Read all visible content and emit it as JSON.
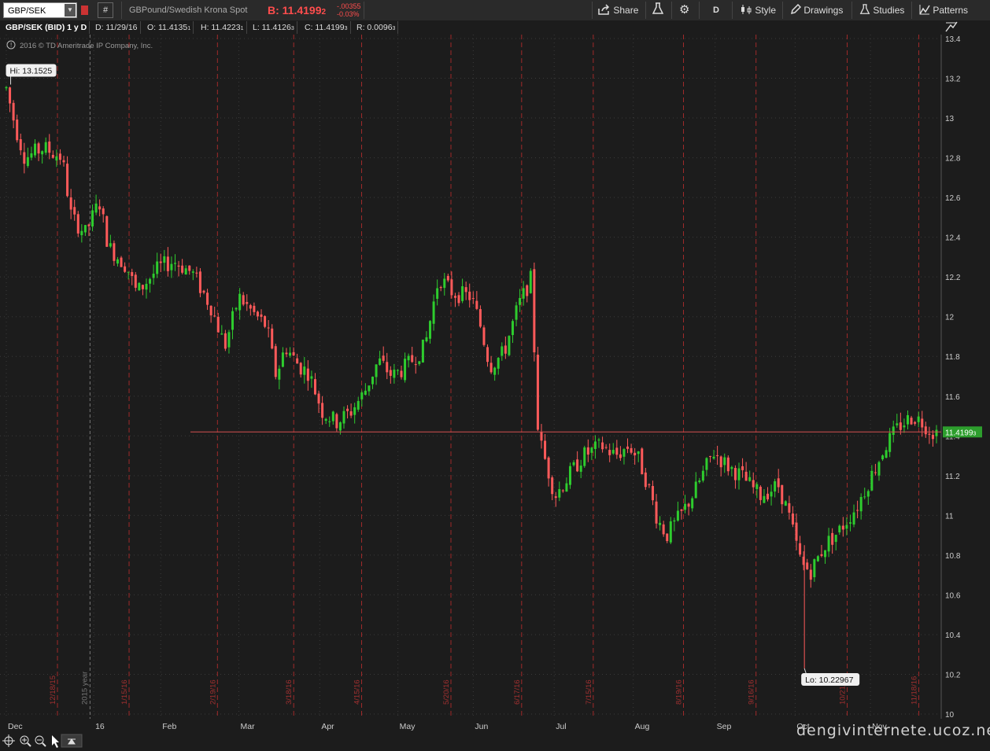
{
  "toolbar": {
    "symbol": "GBP/SEK",
    "description": "GBPound/Swedish Krona Spot",
    "bid_label": "B: 11.4199",
    "bid_last_digit": "2",
    "change": "-.00355",
    "change_pct": "-0.03%",
    "share": "Share",
    "aggregation": "D",
    "style": "Style",
    "drawings": "Drawings",
    "studies": "Studies",
    "patterns": "Patterns",
    "hash": "#"
  },
  "infobar": {
    "title": "GBP/SEK (BID) 1 y D",
    "date": "D: 11/29/16",
    "open": "O: 11.4135",
    "open_sub": "1",
    "high": "H: 11.4223",
    "high_sub": "1",
    "low": "L: 11.4126",
    "low_sub": "3",
    "close": "C: 11.4199",
    "close_sub": "3",
    "range": "R: 0.0096",
    "range_sub": "3"
  },
  "copyright": "2016 © TD Ameritrade IP Company, Inc.",
  "hi_label": "Hi: 13.1525",
  "lo_label": "Lo: 10.22967",
  "last_price_tag": "11.4199",
  "last_price_sub": "3",
  "watermark": "dengivinternete.ucoz.net",
  "colors": {
    "up": "#2ecc2e",
    "down": "#ff5a5a",
    "grid": "#3a3a3a",
    "vline": "#a02a2a",
    "price_line": "#d45050"
  },
  "chart_data": {
    "type": "candlestick",
    "ylim": [
      10.0,
      13.4
    ],
    "y_ticks": [
      10,
      10.2,
      10.4,
      10.6,
      10.8,
      11,
      11.2,
      11.4,
      11.6,
      11.8,
      12,
      12.2,
      12.4,
      12.6,
      12.8,
      13,
      13.2,
      13.4
    ],
    "y_tick_labels": [
      "10",
      "10.2",
      "10.4",
      "10.6",
      "10.8",
      "11",
      "11.2",
      "11.4",
      "11.6",
      "11.8",
      "12",
      "12.2",
      "12.4",
      "12.6",
      "12.8",
      "13",
      "13.2",
      "13.4"
    ],
    "x_month_labels": [
      "Dec",
      "16",
      "Feb",
      "Mar",
      "Apr",
      "May",
      "Jun",
      "Jul",
      "Aug",
      "Sep",
      "Oct",
      "Nov"
    ],
    "x_month_pos": [
      0.0,
      0.094,
      0.166,
      0.25,
      0.337,
      0.421,
      0.502,
      0.589,
      0.674,
      0.762,
      0.848,
      0.929
    ],
    "expiration_labels": [
      "12/18/15",
      "1/15/16",
      "2/19/16",
      "3/18/16",
      "4/15/16",
      "5/20/16",
      "6/17/16",
      "7/15/16",
      "8/19/16",
      "9/16/16",
      "10/21/16",
      "11/18/16"
    ],
    "expiration_pos": [
      0.055,
      0.132,
      0.227,
      0.309,
      0.382,
      0.478,
      0.554,
      0.631,
      0.728,
      0.806,
      0.904,
      0.981
    ],
    "year_marker_label": "2015 year",
    "year_marker_pos": 0.09,
    "series_anchor_points": [
      [
        0.0,
        13.15
      ],
      [
        0.01,
        12.95
      ],
      [
        0.02,
        12.8
      ],
      [
        0.04,
        12.85
      ],
      [
        0.06,
        12.8
      ],
      [
        0.07,
        12.5
      ],
      [
        0.085,
        12.42
      ],
      [
        0.1,
        12.58
      ],
      [
        0.11,
        12.35
      ],
      [
        0.13,
        12.25
      ],
      [
        0.14,
        12.12
      ],
      [
        0.155,
        12.2
      ],
      [
        0.165,
        12.25
      ],
      [
        0.18,
        12.28
      ],
      [
        0.2,
        12.22
      ],
      [
        0.22,
        12.05
      ],
      [
        0.235,
        11.85
      ],
      [
        0.25,
        12.1
      ],
      [
        0.265,
        12.02
      ],
      [
        0.28,
        11.95
      ],
      [
        0.29,
        11.7
      ],
      [
        0.3,
        11.85
      ],
      [
        0.315,
        11.75
      ],
      [
        0.325,
        11.72
      ],
      [
        0.34,
        11.52
      ],
      [
        0.355,
        11.47
      ],
      [
        0.37,
        11.52
      ],
      [
        0.385,
        11.62
      ],
      [
        0.4,
        11.78
      ],
      [
        0.415,
        11.7
      ],
      [
        0.43,
        11.75
      ],
      [
        0.45,
        11.85
      ],
      [
        0.465,
        12.2
      ],
      [
        0.48,
        12.12
      ],
      [
        0.5,
        12.1
      ],
      [
        0.51,
        11.95
      ],
      [
        0.52,
        11.75
      ],
      [
        0.535,
        11.82
      ],
      [
        0.55,
        12.05
      ],
      [
        0.56,
        12.15
      ],
      [
        0.565,
        12.2
      ],
      [
        0.57,
        11.5
      ],
      [
        0.575,
        11.35
      ],
      [
        0.59,
        11.1
      ],
      [
        0.605,
        11.2
      ],
      [
        0.62,
        11.3
      ],
      [
        0.64,
        11.35
      ],
      [
        0.655,
        11.3
      ],
      [
        0.67,
        11.35
      ],
      [
        0.68,
        11.28
      ],
      [
        0.69,
        11.15
      ],
      [
        0.7,
        10.98
      ],
      [
        0.71,
        10.9
      ],
      [
        0.725,
        11.0
      ],
      [
        0.74,
        11.12
      ],
      [
        0.76,
        11.32
      ],
      [
        0.775,
        11.25
      ],
      [
        0.79,
        11.2
      ],
      [
        0.81,
        11.1
      ],
      [
        0.83,
        11.15
      ],
      [
        0.84,
        11.02
      ],
      [
        0.855,
        10.75
      ],
      [
        0.865,
        10.72
      ],
      [
        0.88,
        10.85
      ],
      [
        0.895,
        10.92
      ],
      [
        0.915,
        11.05
      ],
      [
        0.93,
        11.2
      ],
      [
        0.945,
        11.35
      ],
      [
        0.96,
        11.45
      ],
      [
        0.975,
        11.5
      ],
      [
        0.985,
        11.47
      ],
      [
        0.995,
        11.42
      ]
    ],
    "hi": {
      "value": 13.1525,
      "pos": 0.003
    },
    "lo": {
      "value": 10.22967,
      "pos": 0.858
    },
    "last": 11.4199
  }
}
